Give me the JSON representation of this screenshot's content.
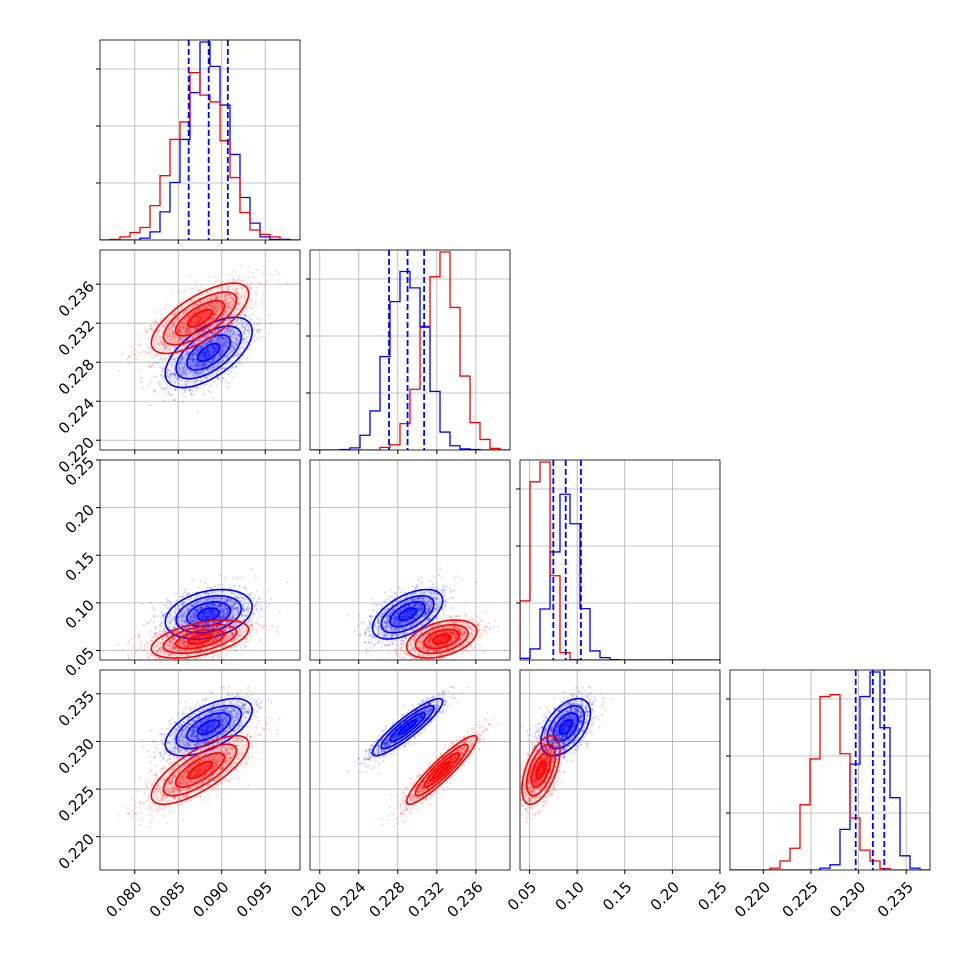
{
  "chart_data": {
    "type": "corner",
    "parameters": [
      "",
      "",
      "",
      ""
    ],
    "colors": {
      "series_1": "#0000ff",
      "series_2": "#ff0000",
      "grid": "#b0b0b0"
    },
    "grid": true,
    "axes": [
      {
        "range": [
          0.076,
          0.099
        ],
        "ticks": [
          0.08,
          0.085,
          0.09,
          0.095
        ],
        "tick_labels": [
          "0.080",
          "0.085",
          "0.090",
          "0.095"
        ]
      },
      {
        "range": [
          0.219,
          0.2395
        ],
        "ticks": [
          0.22,
          0.224,
          0.228,
          0.232,
          0.236
        ],
        "tick_labels": [
          "0.220",
          "0.224",
          "0.228",
          "0.232",
          "0.236"
        ]
      },
      {
        "range": [
          0.04,
          0.25
        ],
        "ticks": [
          0.05,
          0.1,
          0.15,
          0.2,
          0.25
        ],
        "tick_labels": [
          "0.05",
          "0.10",
          "0.15",
          "0.20",
          "0.25"
        ]
      },
      {
        "range": [
          0.2165,
          0.2375
        ],
        "ticks": [
          0.22,
          0.225,
          0.23,
          0.235
        ],
        "tick_labels": [
          "0.220",
          "0.225",
          "0.230",
          "0.235"
        ]
      }
    ],
    "series": [
      {
        "name": "",
        "color": "#0000ff",
        "means": [
          0.0885,
          0.229,
          0.088,
          0.2315
        ],
        "sigmas": [
          0.0025,
          0.0018,
          0.013,
          0.0015
        ],
        "correlations": [
          [
            1,
            0.6,
            0.3,
            0.6
          ],
          [
            0.6,
            1,
            0.55,
            0.9
          ],
          [
            0.3,
            0.55,
            1,
            0.5
          ],
          [
            0.6,
            0.9,
            0.5,
            1
          ]
        ],
        "quantiles": [
          [
            0.0862,
            0.0885,
            0.0907
          ],
          [
            0.2271,
            0.229,
            0.2307
          ],
          [
            0.075,
            0.088,
            0.104
          ],
          [
            0.2297,
            0.2315,
            0.2327
          ]
        ]
      },
      {
        "name": "",
        "color": "#ff0000",
        "means": [
          0.0875,
          0.2325,
          0.062,
          0.227
        ],
        "sigmas": [
          0.0028,
          0.0018,
          0.01,
          0.0018
        ],
        "correlations": [
          [
            1,
            0.7,
            0.5,
            0.75
          ],
          [
            0.7,
            1,
            0.4,
            0.92
          ],
          [
            0.5,
            0.4,
            1,
            0.55
          ],
          [
            0.75,
            0.92,
            0.55,
            1
          ]
        ],
        "quantiles": []
      }
    ]
  }
}
